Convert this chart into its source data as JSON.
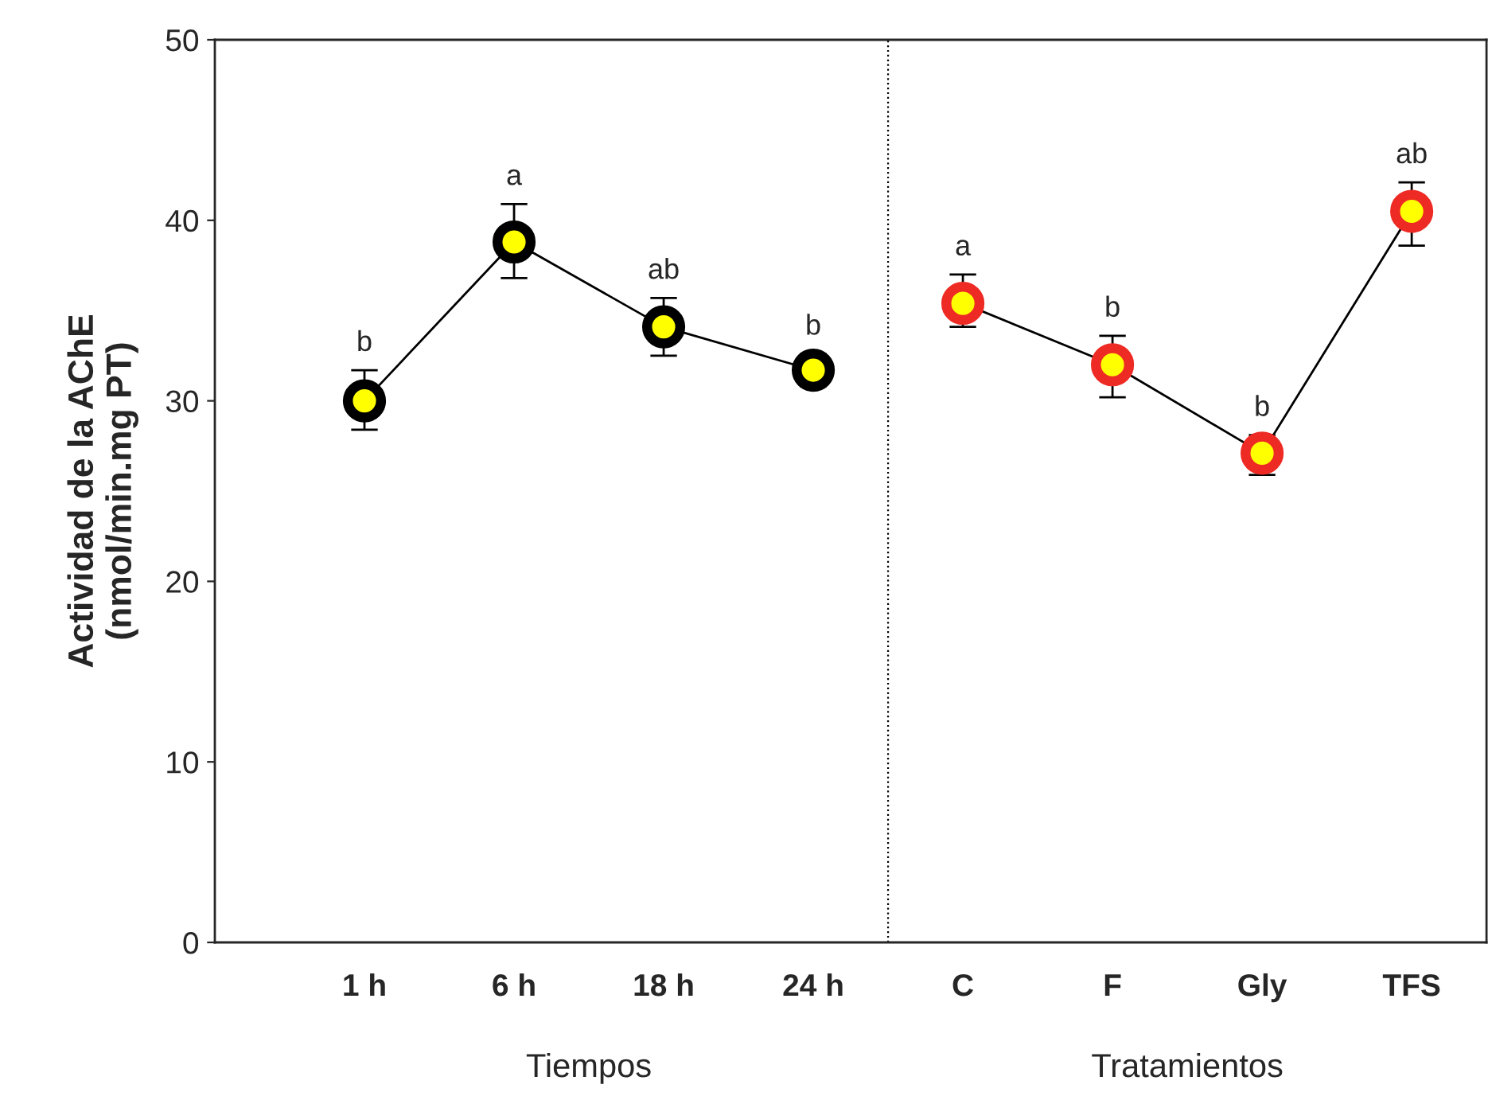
{
  "chart_data": {
    "type": "line",
    "ylabel": "Actividad de la AChE\n(nmol/min.mg PT)",
    "categories": [
      "1 h",
      "6 h",
      "18 h",
      "24 h",
      "C",
      "F",
      "Gly",
      "TFS"
    ],
    "series": [
      {
        "color": "#000000",
        "values": [
          30.0,
          38.8,
          34.1,
          31.7,
          null,
          null,
          null,
          null
        ],
        "errors": [
          [
            28.4,
            31.7
          ],
          [
            36.8,
            40.9
          ],
          [
            32.5,
            35.7
          ],
          [
            30.8,
            32.6
          ],
          null,
          null,
          null,
          null
        ],
        "value_labels": [
          "b",
          "a",
          "ab",
          "b",
          null,
          null,
          null,
          null
        ]
      },
      {
        "color": "#ee2a24",
        "values": [
          null,
          null,
          null,
          null,
          35.4,
          32.0,
          27.1,
          40.5
        ],
        "errors": [
          null,
          null,
          null,
          null,
          [
            34.1,
            37.0
          ],
          [
            30.2,
            33.6
          ],
          [
            25.9,
            28.1
          ],
          [
            38.6,
            42.1
          ]
        ],
        "value_labels": [
          null,
          null,
          null,
          null,
          "a",
          "b",
          "b",
          "ab"
        ]
      }
    ],
    "annotations": [
      "Tiempos",
      "Tratamientos"
    ],
    "ylim": [
      0,
      50
    ],
    "yticks": [
      0,
      10,
      20,
      30,
      40,
      50
    ],
    "marker": "circle",
    "grid": false,
    "legend": false
  }
}
